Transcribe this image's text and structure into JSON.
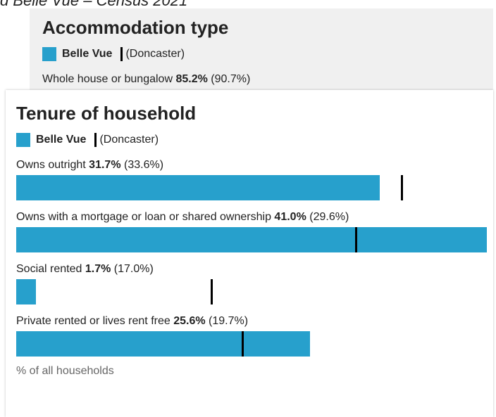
{
  "header": {
    "title": "d Belle Vue – Census 2021"
  },
  "chart_data": [
    {
      "type": "bar",
      "title": "Accommodation type",
      "categories": [
        "Whole house or bungalow"
      ],
      "series": [
        {
          "name": "Belle Vue",
          "color": "#27a0cc",
          "values": [
            85.2
          ],
          "value_labels": [
            "85.2%"
          ]
        },
        {
          "name": "(Doncaster)",
          "color": "#000000",
          "values": [
            90.7
          ],
          "value_labels": [
            "(90.7%)"
          ]
        }
      ]
    },
    {
      "type": "bar",
      "title": "Tenure of household",
      "categories": [
        "Owns outright",
        "Owns with a mortgage or loan or shared ownership",
        "Social rented",
        "Private rented or lives rent free"
      ],
      "series": [
        {
          "name": "Belle Vue",
          "color": "#27a0cc",
          "values": [
            31.7,
            41.0,
            1.7,
            25.6
          ],
          "value_labels": [
            "31.7%",
            "41.0%",
            "1.7%",
            "25.6%"
          ]
        },
        {
          "name": "(Doncaster)",
          "color": "#000000",
          "values": [
            33.6,
            29.6,
            17.0,
            19.7
          ],
          "value_labels": [
            "(33.6%)",
            "(29.6%)",
            "(17.0%)",
            "(19.7%)"
          ]
        }
      ],
      "xlim": [
        0,
        41.0
      ],
      "xlabel": "% of all households"
    }
  ]
}
